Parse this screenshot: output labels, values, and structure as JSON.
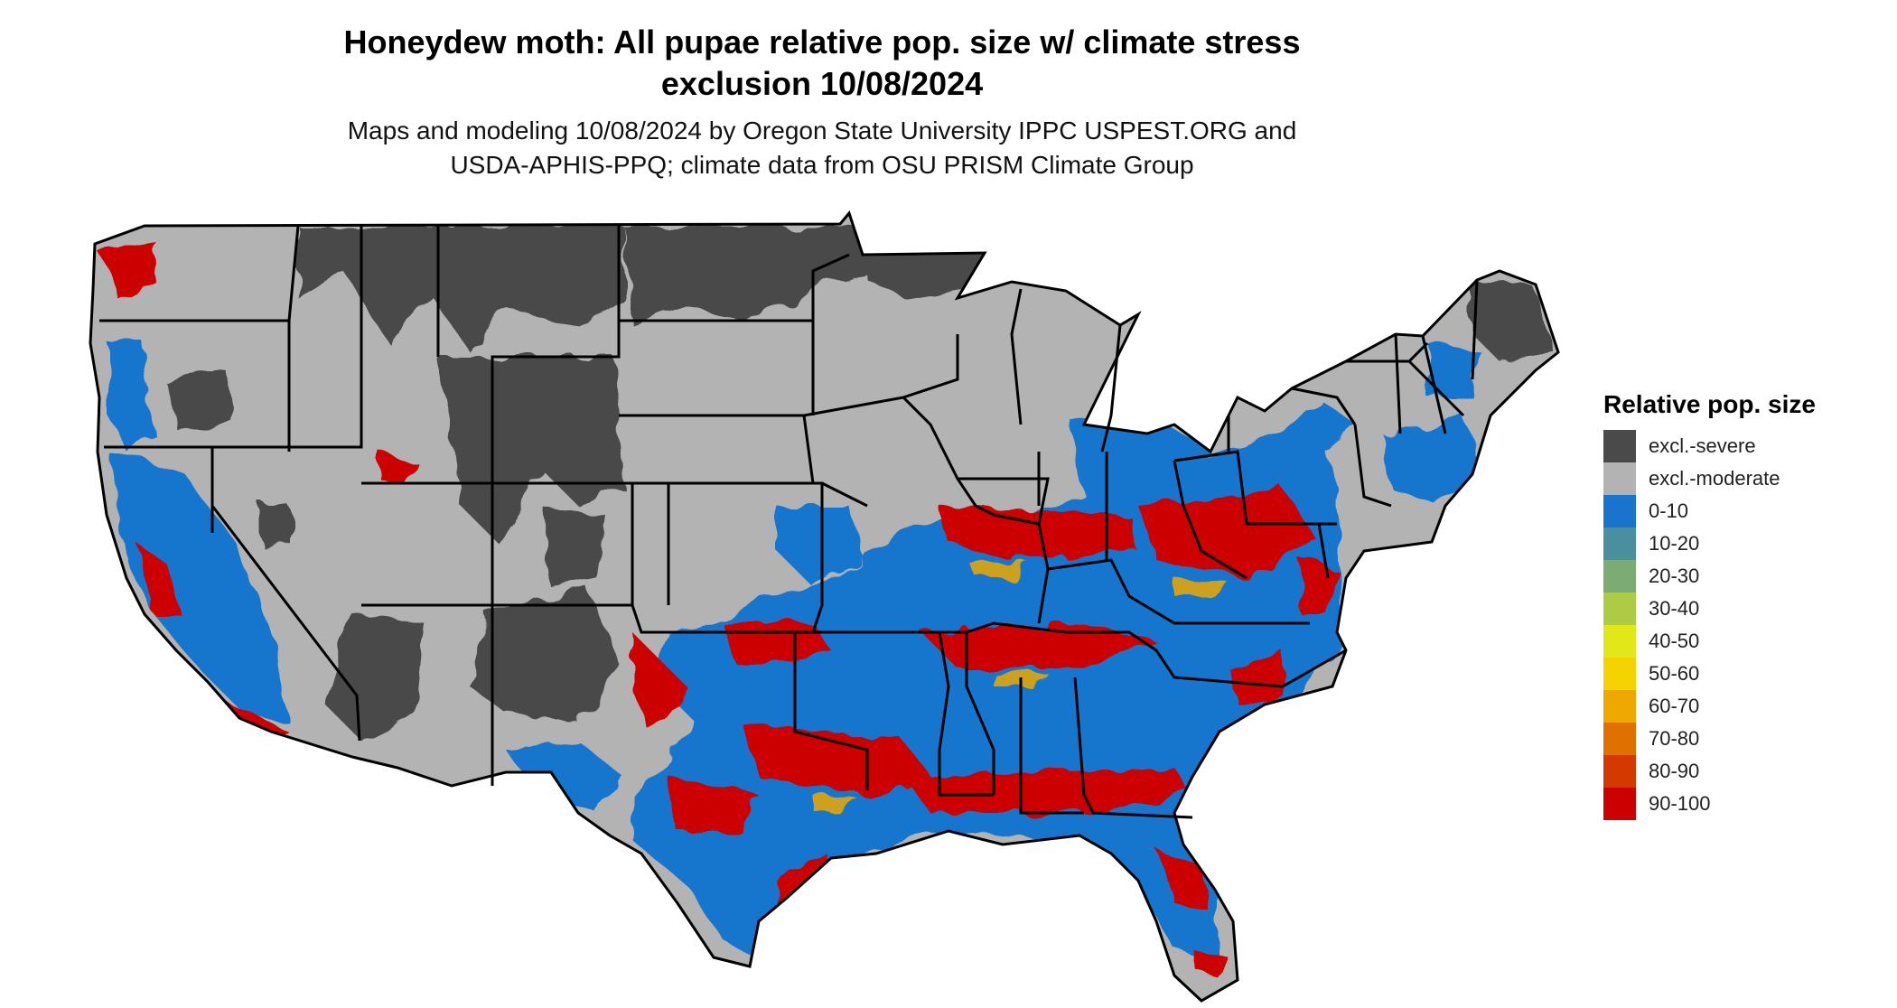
{
  "title_line1": "Honeydew moth: All pupae relative pop. size w/ climate stress",
  "title_line2": "exclusion 10/08/2024",
  "subtitle_line1": "Maps and modeling 10/08/2024 by Oregon State University IPPC USPEST.ORG and",
  "subtitle_line2": "USDA-APHIS-PPQ; climate data from OSU PRISM Climate Group",
  "legend": {
    "title": "Relative pop. size",
    "items": [
      {
        "label": "excl.-severe",
        "color": "#4a4a4a"
      },
      {
        "label": "excl.-moderate",
        "color": "#b3b3b3"
      },
      {
        "label": "0-10",
        "color": "#1874cd"
      },
      {
        "label": "10-20",
        "color": "#4a8fa0"
      },
      {
        "label": "20-30",
        "color": "#7cab73"
      },
      {
        "label": "30-40",
        "color": "#aecb45"
      },
      {
        "label": "40-50",
        "color": "#e0e81a"
      },
      {
        "label": "50-60",
        "color": "#f5d300"
      },
      {
        "label": "60-70",
        "color": "#eea800"
      },
      {
        "label": "70-80",
        "color": "#e07000"
      },
      {
        "label": "80-90",
        "color": "#d43a00"
      },
      {
        "label": "90-100",
        "color": "#cc0000"
      }
    ]
  }
}
